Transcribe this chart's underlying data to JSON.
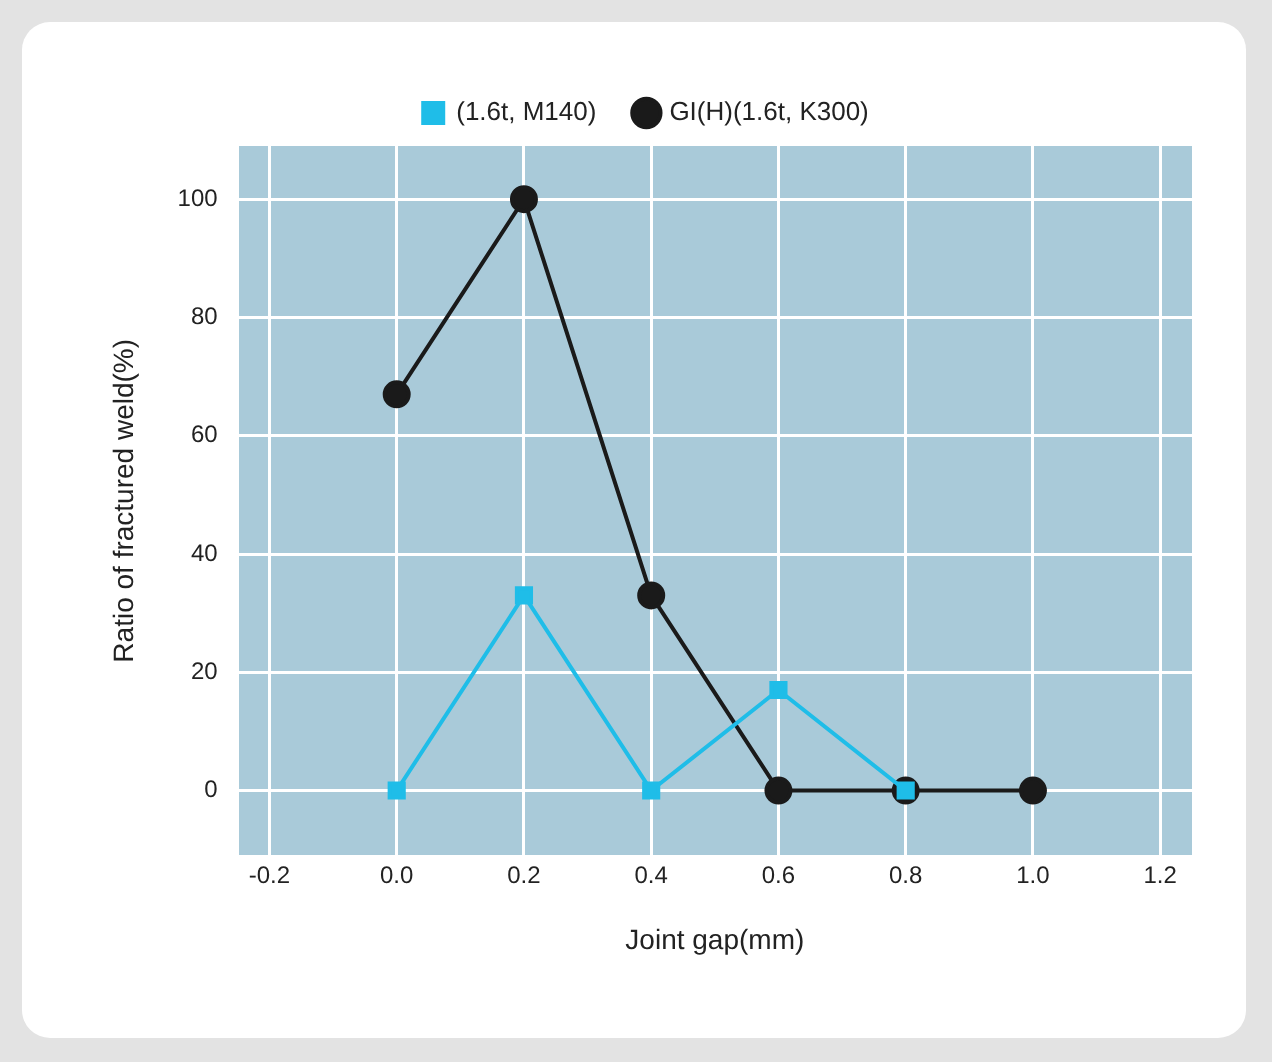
{
  "chart_data": {
    "type": "line",
    "xlabel": "Joint gap(mm)",
    "ylabel": "Ratio of fractured weld(%)",
    "series": [
      {
        "name": "(1.6t, M140)",
        "color": "#1fbde8",
        "marker": "square",
        "x": [
          0,
          0.2,
          0.4,
          0.6,
          0.8
        ],
        "values": [
          0,
          33,
          0,
          17,
          0
        ]
      },
      {
        "name": "GI(H)(1.6t, K300)",
        "color": "#1a1a1a",
        "marker": "circle",
        "x": [
          0,
          0.2,
          0.4,
          0.6,
          0.8,
          1.0
        ],
        "values": [
          67,
          100,
          33,
          0,
          0,
          0
        ]
      }
    ],
    "xlim": [
      -0.25,
      1.25
    ],
    "xticks": [
      {
        "value": -0.2,
        "label": "-0.2"
      },
      {
        "value": 0,
        "label": "0.0"
      },
      {
        "value": 0.2,
        "label": "0.2"
      },
      {
        "value": 0.4,
        "label": "0.4"
      },
      {
        "value": 0.6,
        "label": "0.6"
      },
      {
        "value": 0.8,
        "label": "0.8"
      },
      {
        "value": 1.0,
        "label": "1.0"
      },
      {
        "value": 1.2,
        "label": "1.2"
      }
    ],
    "ylim": [
      -11,
      109
    ],
    "yticks": [
      0,
      20,
      40,
      60,
      80,
      100
    ],
    "grid": true,
    "legend": "top",
    "line_style": "solid"
  }
}
